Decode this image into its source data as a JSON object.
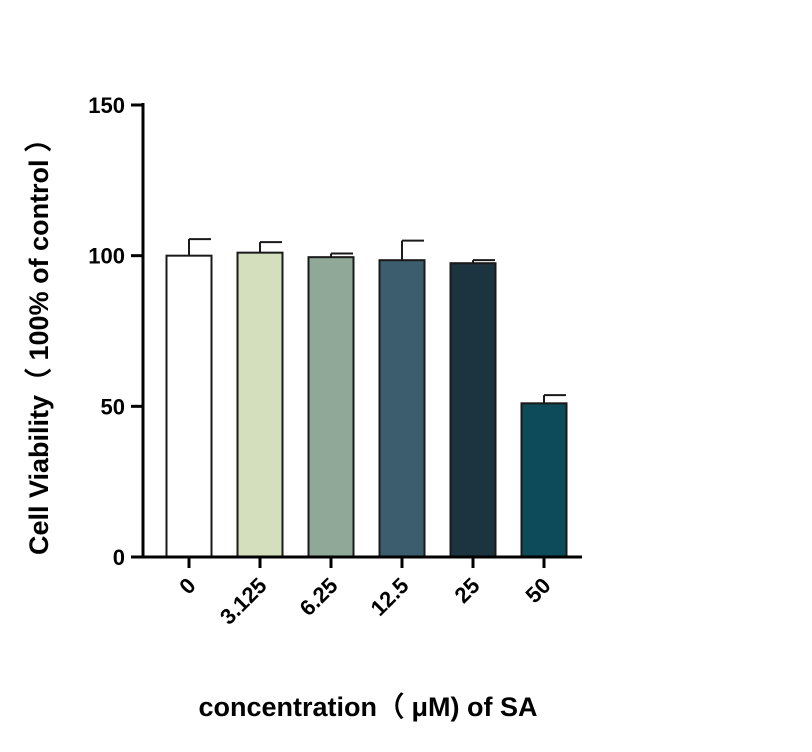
{
  "chart_data": {
    "type": "bar",
    "title": "",
    "xlabel": "concentration（ μM) of SA",
    "ylabel": "Cell Viability（ 100% of control ）",
    "categories": [
      "0",
      "3.125",
      "6.25",
      "12.5",
      "25",
      "50"
    ],
    "values": [
      100,
      101,
      99.5,
      98.5,
      97.5,
      51
    ],
    "errors": [
      5.5,
      3.5,
      1.2,
      6.5,
      1.0,
      2.7
    ],
    "ylim": [
      0,
      150
    ],
    "yticks": [
      "0",
      "50",
      "100",
      "150"
    ],
    "grid": false,
    "legend": "none",
    "colors": [
      "#ffffff",
      "#d3dfbd",
      "#8fa898",
      "#3b5d6d",
      "#1c3340",
      "#0d4a5a"
    ],
    "edge_color": "#1a1a1a"
  }
}
